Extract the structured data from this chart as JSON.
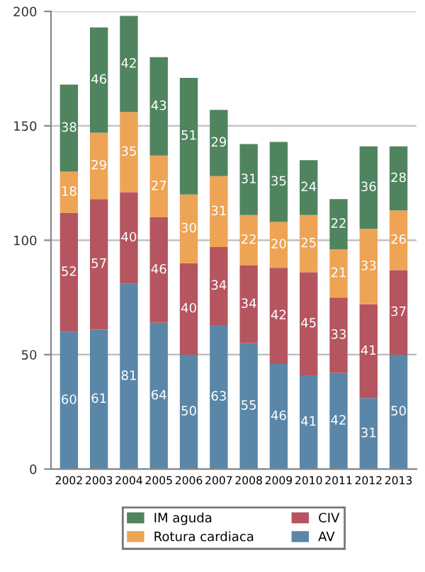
{
  "chart_data": {
    "type": "bar",
    "stacked": true,
    "data_labels": true,
    "grid": "y",
    "legend": "bottom",
    "categories": [
      "2002",
      "2003",
      "2004",
      "2005",
      "2006",
      "2007",
      "2008",
      "2009",
      "2010",
      "2011",
      "2012",
      "2013"
    ],
    "ylim": [
      0,
      200
    ],
    "yticks": [
      0,
      50,
      100,
      150,
      200
    ],
    "series": [
      {
        "name": "AV",
        "color": "#5a87a8",
        "values": [
          60,
          61,
          81,
          64,
          50,
          63,
          55,
          46,
          41,
          42,
          31,
          50
        ]
      },
      {
        "name": "CIV",
        "color": "#b5555f",
        "values": [
          52,
          57,
          40,
          46,
          40,
          34,
          34,
          42,
          45,
          33,
          41,
          37
        ]
      },
      {
        "name": "Rotura cardiaca",
        "color": "#eda455",
        "values": [
          18,
          29,
          35,
          27,
          30,
          31,
          22,
          20,
          25,
          21,
          33,
          26
        ]
      },
      {
        "name": "IM aguda",
        "color": "#4f845f",
        "values": [
          38,
          46,
          42,
          43,
          51,
          29,
          31,
          35,
          24,
          22,
          36,
          28
        ]
      }
    ]
  }
}
